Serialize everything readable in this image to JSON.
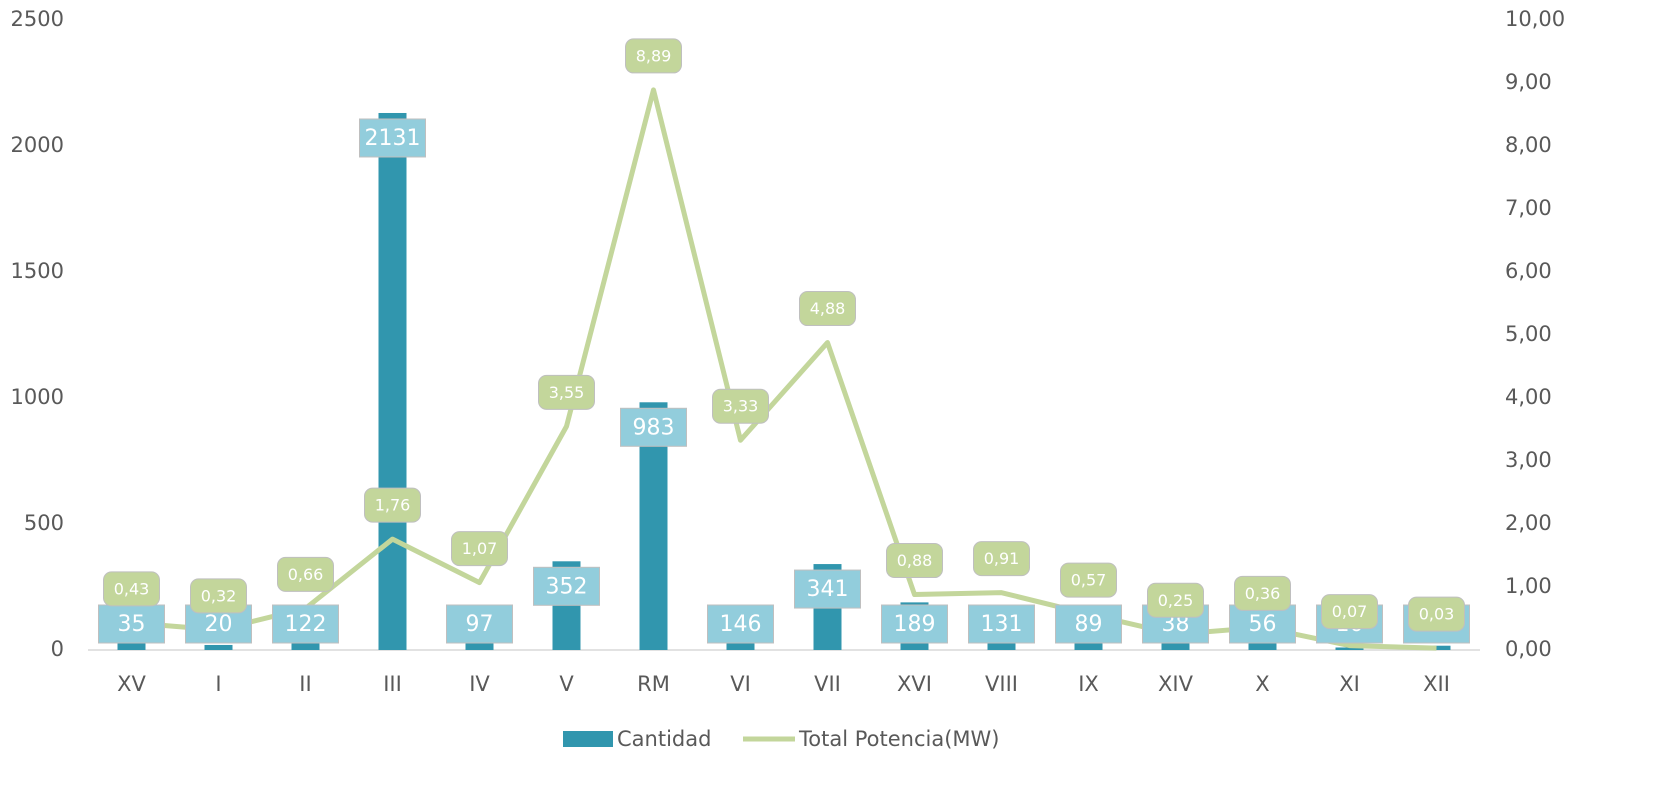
{
  "chart_data": {
    "type": "bar",
    "categories": [
      "XV",
      "I",
      "II",
      "III",
      "IV",
      "V",
      "RM",
      "VI",
      "VII",
      "XVI",
      "VIII",
      "IX",
      "XIV",
      "X",
      "XI",
      "XII"
    ],
    "series": [
      {
        "name": "Cantidad",
        "type": "bar",
        "color": "#3196ae",
        "label_color": "#92cddc",
        "values": [
          35,
          20,
          122,
          2131,
          97,
          352,
          983,
          146,
          341,
          189,
          131,
          89,
          38,
          56,
          10,
          17
        ]
      },
      {
        "name": "Total Potencia(MW)",
        "type": "line",
        "axis": "y2",
        "color": "#c3d69b",
        "label_color": "#c3d69b",
        "values": [
          0.43,
          0.32,
          0.66,
          1.76,
          1.07,
          3.55,
          8.89,
          3.33,
          4.88,
          0.88,
          0.91,
          0.57,
          0.25,
          0.36,
          0.07,
          0.03
        ],
        "value_labels": [
          "0,43",
          "0,32",
          "0,66",
          "1,76",
          "1,07",
          "3,55",
          "8,89",
          "3,33",
          "4,88",
          "0,88",
          "0,91",
          "0,57",
          "0,25",
          "0,36",
          "0,07",
          "0,03"
        ]
      }
    ],
    "ylim": [
      0,
      2500
    ],
    "yticks": [
      0,
      500,
      1000,
      1500,
      2000,
      2500
    ],
    "y2lim": [
      0,
      10
    ],
    "y2ticks": [
      {
        "value": 0,
        "label": "0,00"
      },
      {
        "value": 1,
        "label": "1,00"
      },
      {
        "value": 2,
        "label": "2,00"
      },
      {
        "value": 3,
        "label": "3,00"
      },
      {
        "value": 4,
        "label": "4,00"
      },
      {
        "value": 5,
        "label": "5,00"
      },
      {
        "value": 6,
        "label": "6,00"
      },
      {
        "value": 7,
        "label": "7,00"
      },
      {
        "value": 8,
        "label": "8,00"
      },
      {
        "value": 9,
        "label": "9,00"
      },
      {
        "value": 10,
        "label": "10,00"
      }
    ],
    "grid": false,
    "legend": "bottom"
  }
}
